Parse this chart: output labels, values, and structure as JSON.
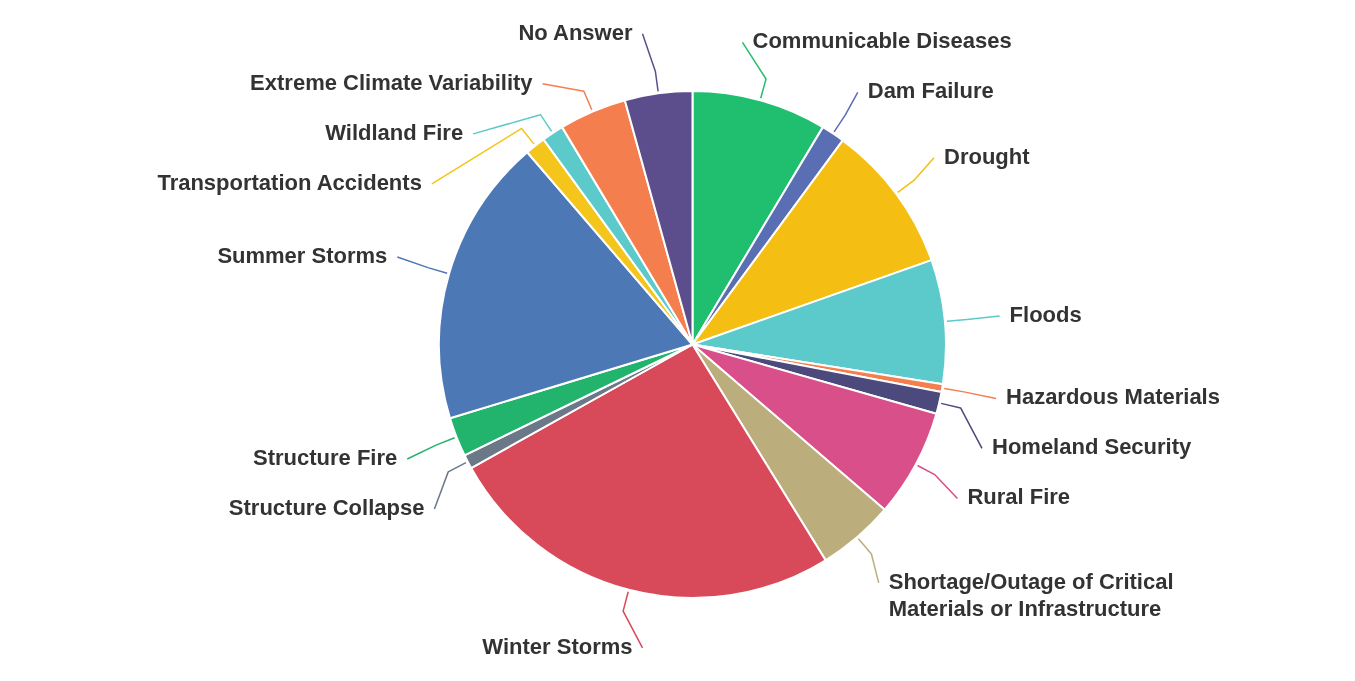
{
  "chart_data": {
    "type": "pie",
    "categories": [
      "Communicable Diseases",
      "Dam Failure",
      "Drought",
      "Floods",
      "Hazardous Materials",
      "Homeland Security",
      "Rural Fire",
      "Shortage/Outage of Critical Materials or Infrastructure",
      "Winter Storms",
      "Structure Collapse",
      "Structure Fire",
      "Summer Storms",
      "Transportation Accidents",
      "Wildland Fire",
      "Extreme Climate Variability",
      "No Answer"
    ],
    "values": [
      8.6,
      1.5,
      9.5,
      7.9,
      0.5,
      1.4,
      6.9,
      4.9,
      25.7,
      0.9,
      2.5,
      18.4,
      1.3,
      1.4,
      4.3,
      4.3
    ],
    "colors": [
      "#1fbf6f",
      "#5a6fb3",
      "#f5be12",
      "#5ccaca",
      "#f57e4e",
      "#4c4a7c",
      "#d84f8a",
      "#bcae7c",
      "#d8495a",
      "#6b7888",
      "#22b36c",
      "#4d78b6",
      "#f4c51a",
      "#5ccaca",
      "#f57e4e",
      "#5c4e8c"
    ],
    "legend": false
  }
}
